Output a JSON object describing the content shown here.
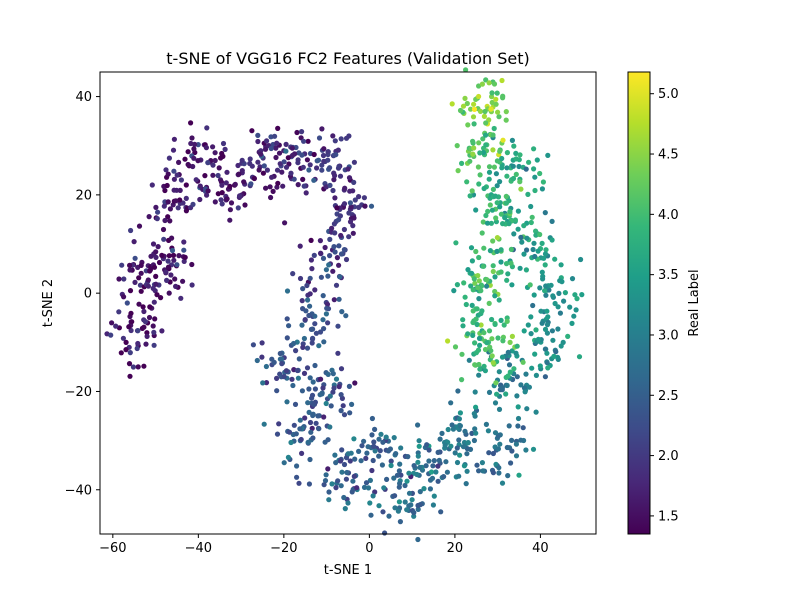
{
  "chart_data": {
    "type": "scatter",
    "title": "t-SNE of VGG16 FC2 Features (Validation Set)",
    "xlabel": "t-SNE 1",
    "ylabel": "t-SNE 2",
    "xlim": [
      -63,
      53
    ],
    "ylim": [
      -49,
      45
    ],
    "x_ticks": [
      -60,
      -40,
      -20,
      0,
      20,
      40
    ],
    "y_ticks": [
      -40,
      -20,
      0,
      20,
      40
    ],
    "x_tick_labels": [
      "−60",
      "−40",
      "−20",
      "0",
      "20",
      "40"
    ],
    "y_tick_labels": [
      "−40",
      "−20",
      "0",
      "20",
      "40"
    ],
    "grid": false,
    "colorbar": {
      "label": "Real Label",
      "range": [
        1.35,
        5.18
      ],
      "ticks": [
        1.5,
        2.0,
        2.5,
        3.0,
        3.5,
        4.0,
        4.5,
        5.0
      ],
      "tick_labels": [
        "1.5",
        "2.0",
        "2.5",
        "3.0",
        "3.5",
        "4.0",
        "4.5",
        "5.0"
      ],
      "colormap": "viridis"
    },
    "colormap_stops": [
      "#440154",
      "#482878",
      "#3e4a89",
      "#31688e",
      "#26828e",
      "#1f9e89",
      "#35b779",
      "#6ece58",
      "#b5de2b",
      "#fde725"
    ],
    "clusters": [
      {
        "x": -55,
        "y": -8,
        "value": 1.6
      },
      {
        "x": -53,
        "y": 2,
        "value": 1.6
      },
      {
        "x": -47,
        "y": 6,
        "value": 1.6
      },
      {
        "x": -45,
        "y": 18,
        "value": 1.6
      },
      {
        "x": -40,
        "y": 27,
        "value": 1.6
      },
      {
        "x": -33,
        "y": 22,
        "value": 1.6
      },
      {
        "x": -25,
        "y": 27,
        "value": 1.8
      },
      {
        "x": -18,
        "y": 28,
        "value": 1.8
      },
      {
        "x": -10,
        "y": 27,
        "value": 1.9
      },
      {
        "x": -5,
        "y": 18,
        "value": 1.9
      },
      {
        "x": -10,
        "y": 8,
        "value": 2.0
      },
      {
        "x": -13,
        "y": -5,
        "value": 2.2
      },
      {
        "x": -20,
        "y": -15,
        "value": 2.3
      },
      {
        "x": -10,
        "y": -20,
        "value": 2.3
      },
      {
        "x": -15,
        "y": -28,
        "value": 2.4
      },
      {
        "x": -5,
        "y": -38,
        "value": 2.5
      },
      {
        "x": 2,
        "y": -33,
        "value": 2.6
      },
      {
        "x": 8,
        "y": -42,
        "value": 2.7
      },
      {
        "x": 15,
        "y": -35,
        "value": 2.7
      },
      {
        "x": 22,
        "y": -30,
        "value": 2.8
      },
      {
        "x": 30,
        "y": -32,
        "value": 2.8
      },
      {
        "x": 33,
        "y": -18,
        "value": 3.0
      },
      {
        "x": 40,
        "y": -12,
        "value": 3.1
      },
      {
        "x": 43,
        "y": 0,
        "value": 3.3
      },
      {
        "x": 38,
        "y": 10,
        "value": 3.5
      },
      {
        "x": 30,
        "y": 18,
        "value": 3.8
      },
      {
        "x": 35,
        "y": 25,
        "value": 3.7
      },
      {
        "x": 26,
        "y": 30,
        "value": 4.2
      },
      {
        "x": 27,
        "y": 38,
        "value": 4.4
      },
      {
        "x": 28,
        "y": 5,
        "value": 4.0
      },
      {
        "x": 28,
        "y": -12,
        "value": 4.1
      },
      {
        "x": 25,
        "y": -3,
        "value": 3.7
      }
    ]
  }
}
